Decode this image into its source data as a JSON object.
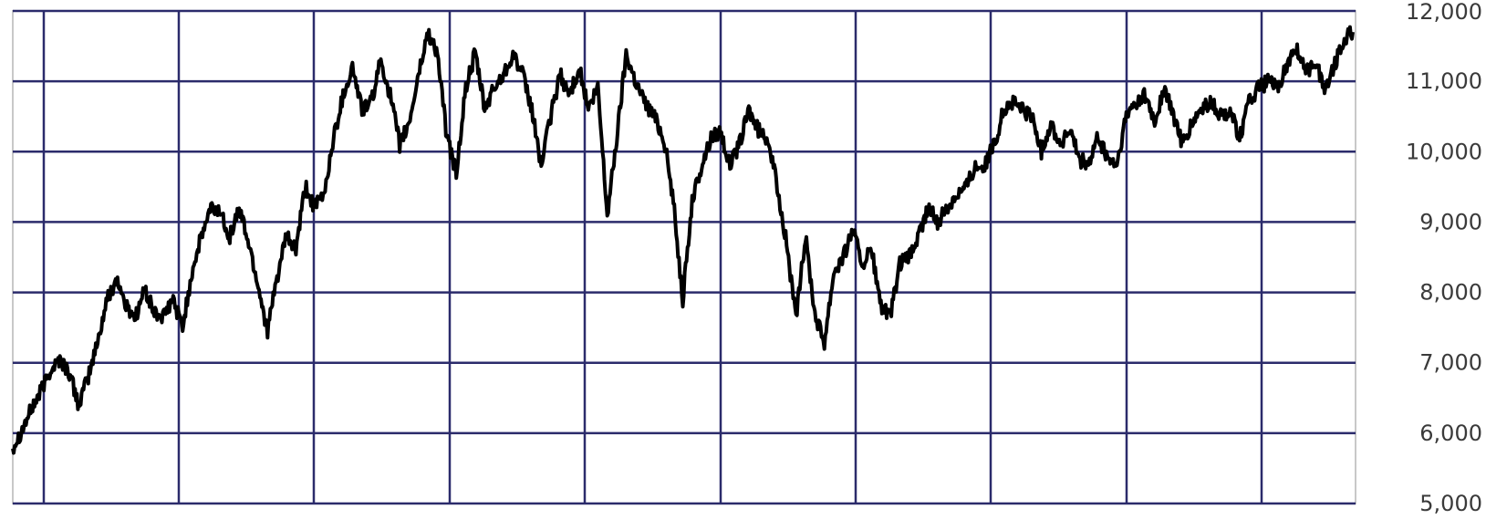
{
  "chart_data": {
    "type": "line",
    "title": "",
    "xlabel": "",
    "ylabel": "",
    "ylim": [
      5000,
      12000
    ],
    "grid": true,
    "y_ticks": [
      "5,000",
      "6,000",
      "7,000",
      "8,000",
      "9,000",
      "10,000",
      "11,000",
      "12,000"
    ],
    "y_tick_values": [
      5000,
      6000,
      7000,
      8000,
      9000,
      10000,
      11000,
      12000
    ],
    "x_gridlines": 10,
    "colors": {
      "series": "#000000",
      "grid": "#2b2b6b",
      "frame": "#c8c8c8",
      "tick_text": "#3a3a3a"
    },
    "series": [
      {
        "values": [
          5800,
          6050,
          6350,
          6600,
          6900,
          7050,
          6850,
          6400,
          6800,
          7300,
          7900,
          8200,
          7800,
          7650,
          8050,
          7700,
          7650,
          7900,
          7500,
          8300,
          8800,
          9200,
          9150,
          8800,
          9200,
          8700,
          8100,
          7450,
          8200,
          8800,
          8600,
          9500,
          9200,
          9400,
          10200,
          10800,
          11200,
          10600,
          10700,
          11300,
          10800,
          10100,
          10400,
          11100,
          11700,
          11400,
          10200,
          9700,
          10900,
          11400,
          10600,
          10900,
          11100,
          11400,
          11100,
          10600,
          9800,
          10500,
          11100,
          10800,
          11200,
          10600,
          10900,
          9100,
          10200,
          11400,
          11000,
          10700,
          10500,
          10200,
          9300,
          7900,
          9300,
          9800,
          10200,
          10300,
          9800,
          10100,
          10600,
          10300,
          10200,
          9500,
          8700,
          7600,
          8800,
          7700,
          7300,
          8300,
          8500,
          8900,
          8400,
          8600,
          7800,
          7650,
          8400,
          8500,
          8800,
          9200,
          9000,
          9200,
          9400,
          9500,
          9800,
          9800,
          10100,
          10600,
          10700,
          10600,
          10500,
          10000,
          10400,
          10100,
          10300,
          9900,
          9800,
          10200,
          9900,
          9800,
          10500,
          10700,
          10800,
          10400,
          10900,
          10500,
          10100,
          10400,
          10600,
          10700,
          10500,
          10600,
          10200,
          10700,
          10900,
          11000,
          10900,
          11200,
          11500,
          11100,
          11300,
          10900,
          11200,
          11600,
          11700
        ]
      }
    ]
  }
}
